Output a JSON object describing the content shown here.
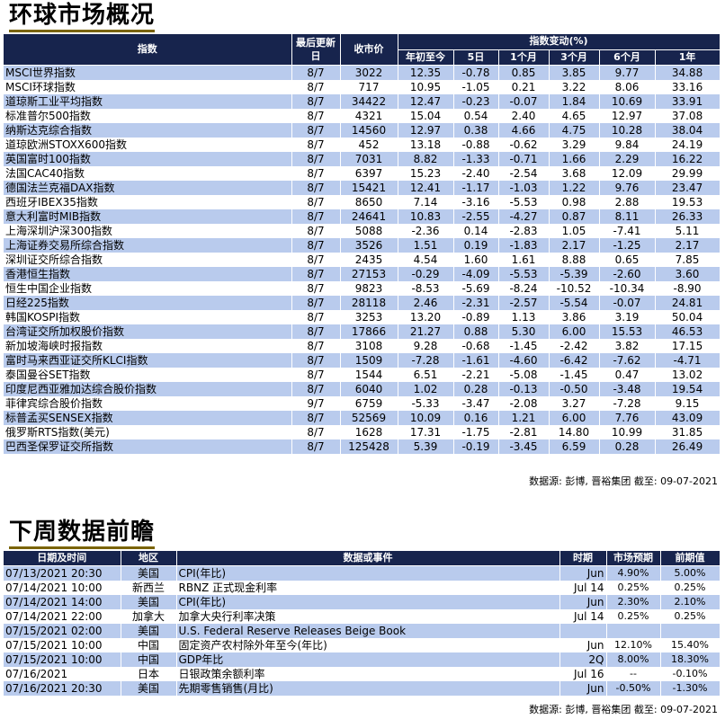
{
  "market": {
    "title": "环球市场概况",
    "headers": {
      "index": "指数",
      "last_update": "最后更新日",
      "close": "收市价",
      "change_group": "指数变动(%)",
      "ytd": "年初至今",
      "d5": "5日",
      "m1": "1个月",
      "m3": "3个月",
      "m6": "6个月",
      "y1": "1年"
    },
    "rows": [
      [
        "MSCI世界指数",
        "8/7",
        "3022",
        "12.35",
        "-0.78",
        "0.85",
        "3.85",
        "9.77",
        "34.88"
      ],
      [
        "MSCI环球指数",
        "8/7",
        "717",
        "10.95",
        "-1.05",
        "0.21",
        "3.22",
        "8.06",
        "33.16"
      ],
      [
        "道琼斯工业平均指数",
        "8/7",
        "34422",
        "12.47",
        "-0.23",
        "-0.07",
        "1.84",
        "10.69",
        "33.91"
      ],
      [
        "标准普尔500指数",
        "8/7",
        "4321",
        "15.04",
        "0.54",
        "2.40",
        "4.65",
        "12.97",
        "37.08"
      ],
      [
        "纳斯达克综合指数",
        "8/7",
        "14560",
        "12.97",
        "0.38",
        "4.66",
        "4.75",
        "10.28",
        "38.04"
      ],
      [
        "道琼欧洲STOXX600指数",
        "8/7",
        "452",
        "13.18",
        "-0.88",
        "-0.62",
        "3.29",
        "9.84",
        "24.19"
      ],
      [
        "英国富时100指数",
        "8/7",
        "7031",
        "8.82",
        "-1.33",
        "-0.71",
        "1.66",
        "2.29",
        "16.22"
      ],
      [
        "法国CAC40指数",
        "8/7",
        "6397",
        "15.23",
        "-2.40",
        "-2.54",
        "3.68",
        "12.09",
        "29.99"
      ],
      [
        "德国法兰克福DAX指数",
        "8/7",
        "15421",
        "12.41",
        "-1.17",
        "-1.03",
        "1.22",
        "9.76",
        "23.47"
      ],
      [
        "西班牙IBEX35指数",
        "8/7",
        "8650",
        "7.14",
        "-3.16",
        "-5.53",
        "0.98",
        "2.88",
        "19.53"
      ],
      [
        "意大利富时MIB指数",
        "8/7",
        "24641",
        "10.83",
        "-2.55",
        "-4.27",
        "0.87",
        "8.11",
        "26.33"
      ],
      [
        "上海深圳沪深300指数",
        "8/7",
        "5088",
        "-2.36",
        "0.14",
        "-2.83",
        "1.05",
        "-7.41",
        "5.11"
      ],
      [
        "上海证券交易所综合指数",
        "8/7",
        "3526",
        "1.51",
        "0.19",
        "-1.83",
        "2.17",
        "-1.25",
        "2.17"
      ],
      [
        "深圳证交所综合指数",
        "8/7",
        "2435",
        "4.54",
        "1.60",
        "1.61",
        "8.88",
        "0.65",
        "7.85"
      ],
      [
        "香港恒生指数",
        "8/7",
        "27153",
        "-0.29",
        "-4.09",
        "-5.53",
        "-5.39",
        "-2.60",
        "3.60"
      ],
      [
        "恒生中国企业指数",
        "8/7",
        "9823",
        "-8.53",
        "-5.69",
        "-8.24",
        "-10.52",
        "-10.34",
        "-8.90"
      ],
      [
        "日经225指数",
        "8/7",
        "28118",
        "2.46",
        "-2.31",
        "-2.57",
        "-5.54",
        "-0.07",
        "24.81"
      ],
      [
        "韩国KOSPI指数",
        "8/7",
        "3253",
        "13.20",
        "-0.89",
        "1.13",
        "3.86",
        "3.19",
        "50.04"
      ],
      [
        "台湾证交所加权股价指数",
        "8/7",
        "17866",
        "21.27",
        "0.88",
        "5.30",
        "6.00",
        "15.53",
        "46.53"
      ],
      [
        "新加坡海峡时报指数",
        "8/7",
        "3108",
        "9.28",
        "-0.68",
        "-1.45",
        "-2.42",
        "3.82",
        "17.15"
      ],
      [
        "富时马来西亚证交所KLCI指数",
        "8/7",
        "1509",
        "-7.28",
        "-1.61",
        "-4.60",
        "-6.42",
        "-7.62",
        "-4.71"
      ],
      [
        "泰国曼谷SET指数",
        "8/7",
        "1544",
        "6.51",
        "-2.21",
        "-5.08",
        "-1.45",
        "0.47",
        "13.02"
      ],
      [
        "印度尼西亚雅加达综合股价指数",
        "8/7",
        "6040",
        "1.02",
        "0.28",
        "-0.13",
        "-0.50",
        "-3.48",
        "19.54"
      ],
      [
        "菲律宾综合股价指数",
        "9/7",
        "6759",
        "-5.33",
        "-3.47",
        "-2.08",
        "3.27",
        "-7.28",
        "9.15"
      ],
      [
        "标普孟买SENSEX指数",
        "8/7",
        "52569",
        "10.09",
        "0.16",
        "1.21",
        "6.00",
        "7.76",
        "43.09"
      ],
      [
        "俄罗斯RTS指数(美元)",
        "8/7",
        "1628",
        "17.31",
        "-1.75",
        "-2.81",
        "14.80",
        "10.99",
        "31.85"
      ],
      [
        "巴西圣保罗证交所指数",
        "8/7",
        "125428",
        "5.39",
        "-0.19",
        "-3.45",
        "6.59",
        "0.28",
        "26.49"
      ]
    ],
    "source": "数据源: 彭博, 晋裕集团 截至: 09-07-2021"
  },
  "calendar": {
    "title": "下周数据前瞻",
    "headers": {
      "datetime": "日期及时间",
      "region": "地区",
      "event": "数据或事件",
      "period": "时期",
      "forecast": "市场预期",
      "previous": "前期值"
    },
    "rows": [
      [
        "07/13/2021 20:30",
        "美国",
        "CPI(年比)",
        "Jun",
        "4.90%",
        "5.00%"
      ],
      [
        "07/14/2021 10:00",
        "新西兰",
        "RBNZ 正式现金利率",
        "Jul 14",
        "0.25%",
        "0.25%"
      ],
      [
        "07/14/2021 14:00",
        "美国",
        "CPI(年比)",
        "Jun",
        "2.30%",
        "2.10%"
      ],
      [
        "07/14/2021 22:00",
        "加拿大",
        "加拿大央行利率决策",
        "Jul 14",
        "0.25%",
        "0.25%"
      ],
      [
        "07/15/2021 02:00",
        "美国",
        "U.S. Federal Reserve Releases Beige Book",
        "",
        "",
        ""
      ],
      [
        "07/15/2021 10:00",
        "中国",
        "固定资产农村除外年至今(年比)",
        "Jun",
        "12.10%",
        "15.40%"
      ],
      [
        "07/15/2021 10:00",
        "中国",
        "GDP年比",
        "2Q",
        "8.00%",
        "18.30%"
      ],
      [
        "07/16/2021",
        "日本",
        "日银政策余额利率",
        "Jul 16",
        "--",
        "-0.10%"
      ],
      [
        "07/16/2021 20:30",
        "美国",
        "先期零售销售(月比)",
        "Jun",
        "-0.50%",
        "-1.30%"
      ]
    ],
    "source": "数据源: 彭博, 晋裕集团 截至: 09-07-2021"
  },
  "colors": {
    "header_bg": "#17244d",
    "row_blue": "#b9cbed",
    "row_white": "#ffffff",
    "title_underline": "#7a6400"
  }
}
